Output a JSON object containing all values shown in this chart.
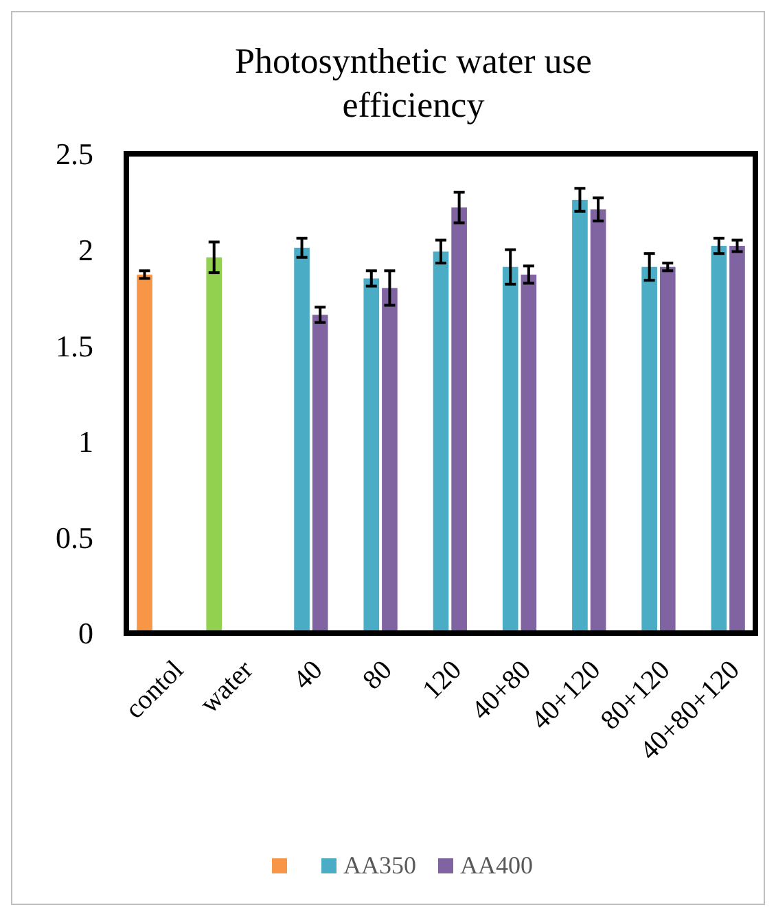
{
  "chart_data": {
    "type": "bar",
    "title": "Photosynthetic water use efficiency",
    "categories": [
      "contol",
      "water",
      "40",
      "80",
      "120",
      "40+80",
      "40+120",
      "80+120",
      "40+80+120"
    ],
    "series": [
      {
        "color": "#f79646",
        "colors": [
          "#f79646",
          "#92d050",
          null,
          null,
          null,
          null,
          null,
          null,
          null
        ],
        "values": [
          1.87,
          1.96,
          null,
          null,
          null,
          null,
          null,
          null,
          null
        ],
        "errors": [
          0.02,
          0.08,
          null,
          null,
          null,
          null,
          null,
          null,
          null
        ]
      },
      {
        "name": "AA350",
        "color": "#4bacc6",
        "values": [
          null,
          null,
          2.01,
          1.85,
          1.99,
          1.91,
          2.26,
          1.91,
          2.02
        ],
        "errors": [
          null,
          null,
          0.05,
          0.04,
          0.06,
          0.09,
          0.06,
          0.07,
          0.04
        ]
      },
      {
        "name": "AA400",
        "color": "#8064a2",
        "values": [
          null,
          null,
          1.66,
          1.8,
          2.22,
          1.87,
          2.21,
          1.91,
          2.02
        ],
        "errors": [
          null,
          null,
          0.04,
          0.09,
          0.08,
          0.045,
          0.06,
          0.02,
          0.03
        ]
      }
    ],
    "ylim": [
      0,
      2.5
    ],
    "yticks": [
      0,
      0.5,
      1,
      1.5,
      2,
      2.5
    ],
    "grid": false,
    "legend": "bottom"
  }
}
